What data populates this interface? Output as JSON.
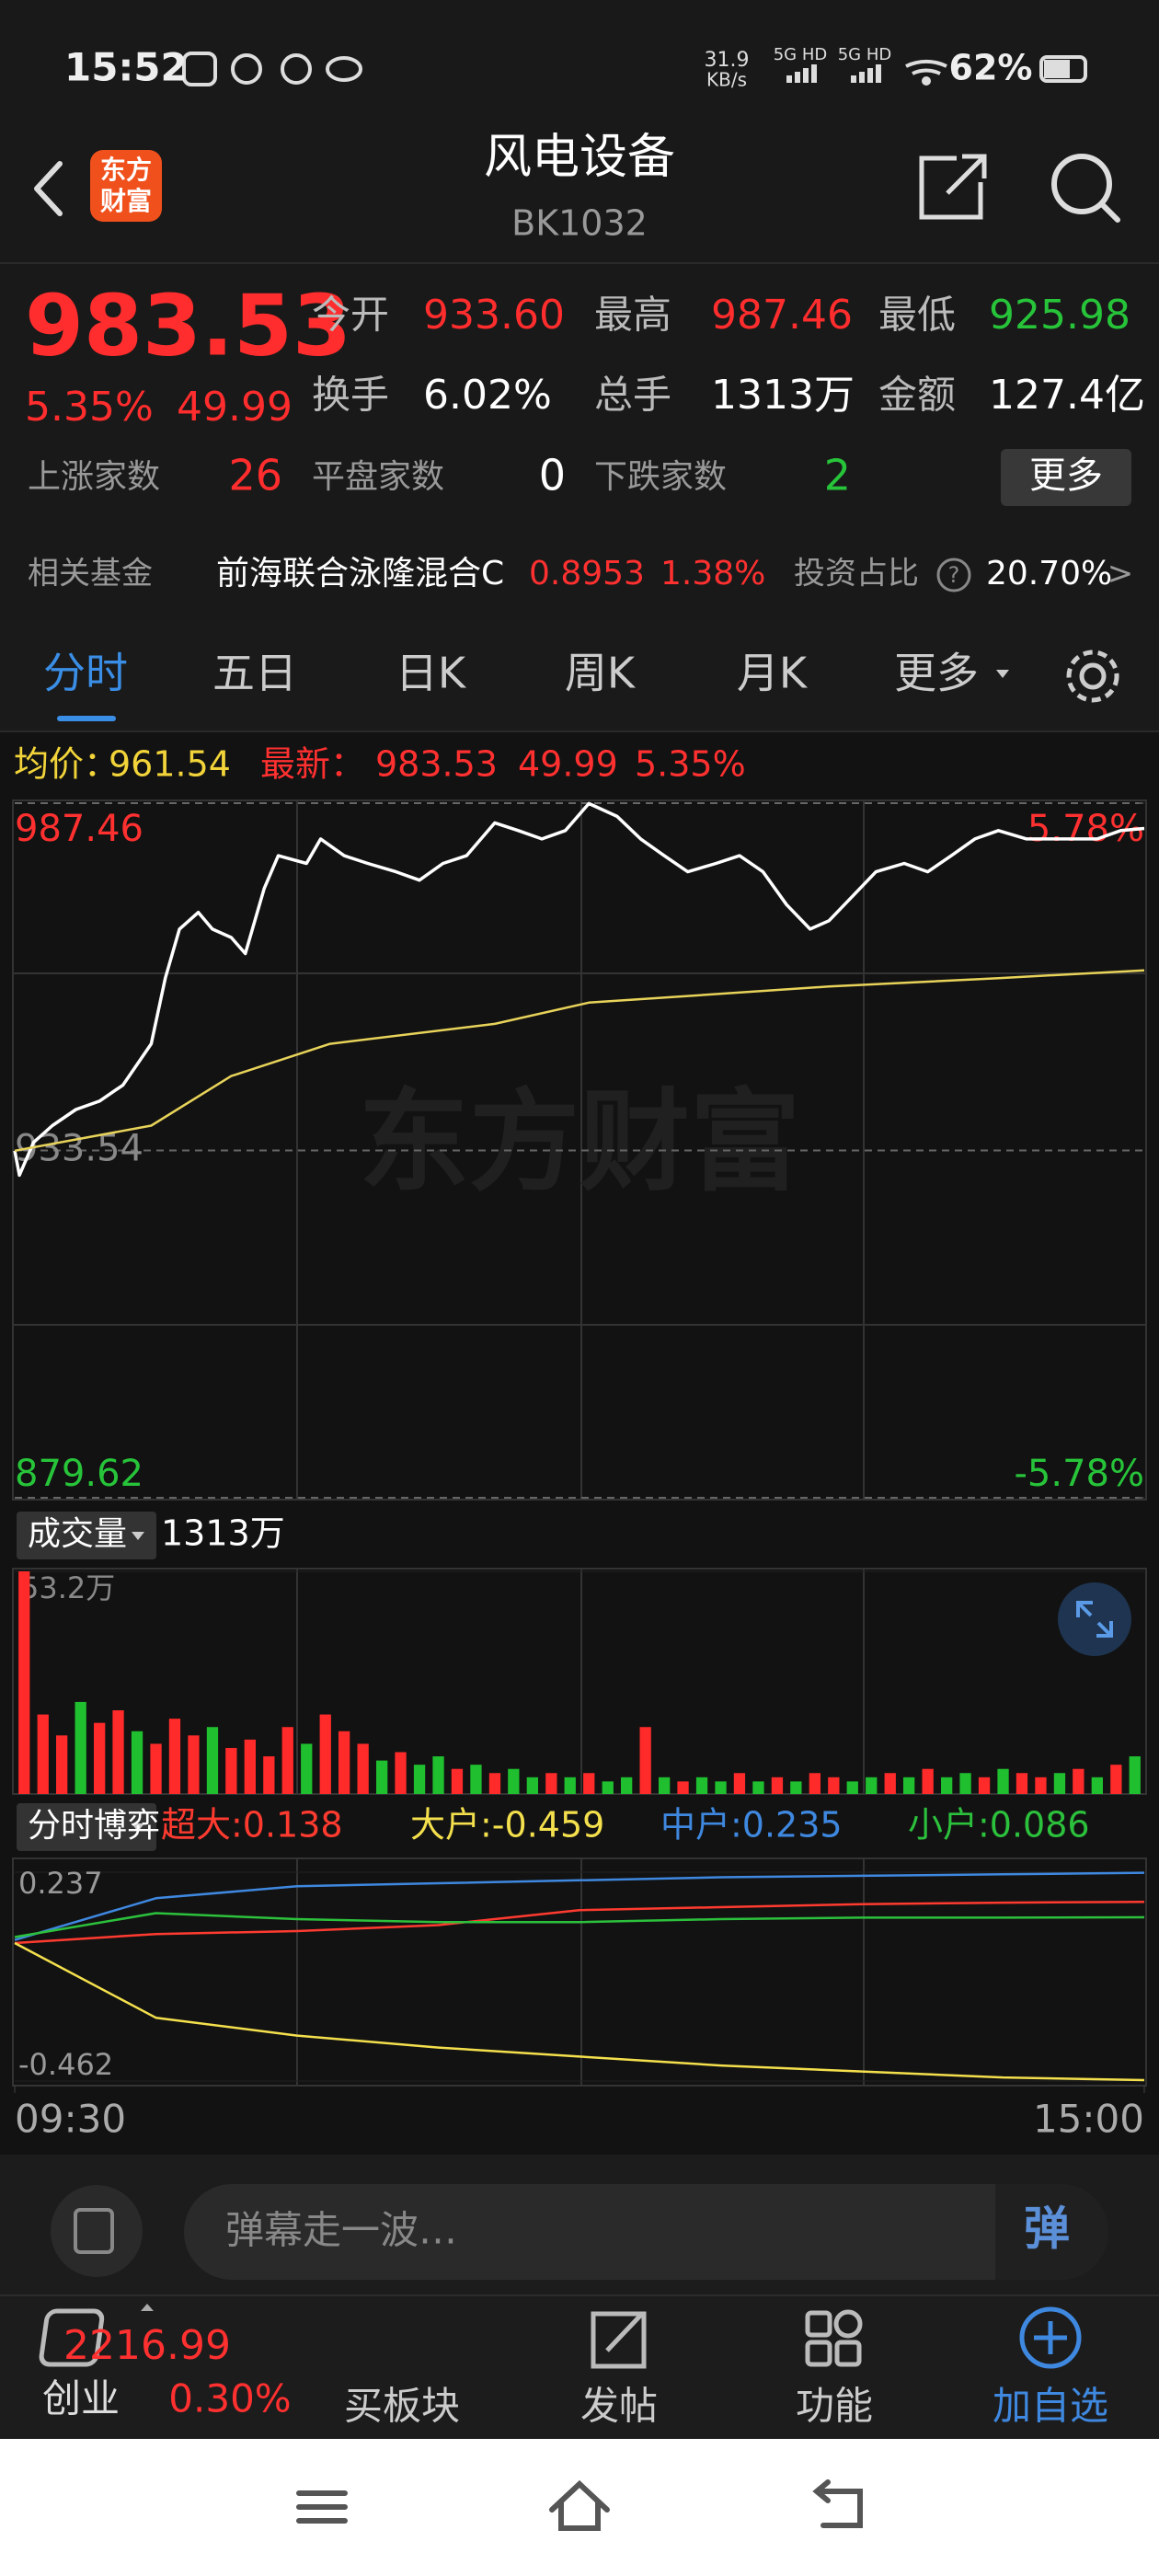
{
  "status_bar": {
    "time": "15:52",
    "speed_value": "31.9",
    "speed_unit": "KB/s",
    "network_1": "5G HD",
    "network_2": "5G HD",
    "battery": "62%"
  },
  "header": {
    "logo_lines": [
      "东方",
      "财富"
    ],
    "title": "风电设备",
    "code": "BK1032"
  },
  "quote": {
    "price": "983.53",
    "change_pct": "5.35%",
    "change": "49.99",
    "color": "#ff2d2d",
    "stats": [
      {
        "label": "今开",
        "value": "933.60",
        "color": "#ff2d2d"
      },
      {
        "label": "最高",
        "value": "987.46",
        "color": "#ff2d2d"
      },
      {
        "label": "最低",
        "value": "925.98",
        "color": "#27c43a"
      },
      {
        "label": "换手",
        "value": "6.02%",
        "color": "#ffffff"
      },
      {
        "label": "总手",
        "value": "1313万",
        "color": "#ffffff"
      },
      {
        "label": "金额",
        "value": "127.4亿",
        "color": "#ffffff"
      }
    ],
    "breadth": [
      {
        "label": "上涨家数",
        "value": "26",
        "color": "#ff2d2d"
      },
      {
        "label": "平盘家数",
        "value": "0",
        "color": "#ffffff"
      },
      {
        "label": "下跌家数",
        "value": "2",
        "color": "#27c43a"
      }
    ],
    "more_button": "更多"
  },
  "fund": {
    "label": "相关基金",
    "name": "前海联合泳隆混合C",
    "nav": "0.8953",
    "change": "1.38%",
    "ratio_label": "投资占比",
    "help": "?",
    "ratio": "20.70%",
    "arrow": ">"
  },
  "tabs": [
    "分时",
    "五日",
    "日K",
    "周K",
    "月K",
    "更多"
  ],
  "active_tab": 0,
  "chart_data": [
    {
      "type": "line",
      "info": [
        "均价：",
        "961.54",
        "最新：",
        "983.53",
        "49.99",
        "5.35%"
      ],
      "info_colors": [
        "#f2d43a",
        "#f2d43a",
        "#ff3030",
        "#ff3030",
        "#ff3030",
        "#ff3030"
      ],
      "watermark": "东方财富",
      "xlim": [
        0,
        240
      ],
      "ylim": [
        879.62,
        987.46
      ],
      "yticks": [
        879.62,
        933.54,
        987.46
      ],
      "y2lim": [
        -5.78,
        5.78
      ],
      "y2ticks": [
        {
          "value": -5.78,
          "label": "-5.78%"
        },
        {
          "value": 5.78,
          "label": "5.78%"
        }
      ],
      "series": [
        {
          "color": "#ffffff",
          "x": [
            0,
            1,
            4,
            8,
            13,
            18,
            23,
            29,
            32,
            35,
            39,
            42,
            46,
            49,
            53,
            56,
            62,
            65,
            70,
            75,
            81,
            86,
            91,
            96,
            102,
            107,
            112,
            117,
            122,
            128,
            133,
            138,
            143,
            149,
            154,
            159,
            164,
            169,
            173,
            178,
            183,
            189,
            194,
            199,
            204,
            209,
            215,
            220,
            225,
            230,
            235,
            240
          ],
          "values": [
            933.5,
            929.7,
            934.8,
            937.4,
            939.9,
            941.2,
            943.7,
            950.1,
            960.3,
            967.9,
            970.5,
            967.9,
            966.6,
            964.1,
            974.2,
            979.3,
            978.1,
            981.9,
            979.3,
            978.1,
            976.8,
            975.5,
            978.1,
            979.3,
            984.4,
            983.2,
            981.9,
            983.2,
            987.4,
            985.4,
            981.9,
            979.3,
            976.8,
            978.1,
            979.3,
            976.8,
            971.7,
            967.9,
            969.2,
            973.0,
            976.8,
            978.1,
            976.8,
            979.3,
            981.9,
            983.2,
            981.9,
            981.9,
            981.9,
            981.9,
            983.2,
            983.53
          ]
        },
        {
          "color": "#e8d35a",
          "x": [
            0,
            29,
            46,
            67,
            102,
            122,
            173,
            209,
            240
          ],
          "values": [
            933.5,
            937.4,
            945.1,
            950.1,
            953.2,
            956.5,
            959.0,
            960.3,
            961.5
          ]
        }
      ]
    },
    {
      "type": "bar",
      "title": "成交量",
      "total": "1313万",
      "ylim": [
        0,
        53.2
      ],
      "yticks": [
        {
          "value": 53.2,
          "label": "53.2万"
        }
      ],
      "up_color": "#ff2a2a",
      "down_color": "#1fbf2f",
      "values": [
        53.2,
        19,
        14,
        22,
        17,
        20,
        15,
        12,
        18,
        14,
        16,
        11,
        13,
        9,
        16,
        12,
        19,
        15,
        12,
        8,
        10,
        7,
        9,
        6,
        7,
        5,
        6,
        4,
        5,
        4,
        5,
        3,
        4,
        16,
        4,
        3,
        4,
        3,
        5,
        3,
        4,
        3,
        5,
        4,
        3,
        4,
        5,
        4,
        6,
        4,
        5,
        4,
        6,
        5,
        4,
        5,
        6,
        4,
        7,
        9
      ],
      "up": [
        1,
        1,
        1,
        0,
        1,
        1,
        0,
        1,
        1,
        1,
        0,
        1,
        1,
        1,
        1,
        0,
        1,
        1,
        1,
        0,
        1,
        0,
        0,
        1,
        0,
        1,
        0,
        0,
        1,
        0,
        1,
        0,
        0,
        1,
        0,
        1,
        0,
        0,
        1,
        0,
        1,
        0,
        1,
        1,
        0,
        0,
        1,
        0,
        1,
        0,
        0,
        1,
        0,
        1,
        1,
        0,
        1,
        0,
        1,
        0
      ]
    },
    {
      "type": "line",
      "title": "分时博弈",
      "xlim": [
        0,
        240
      ],
      "xticks": [
        {
          "value": 0,
          "label": "09:30"
        },
        {
          "value": 240,
          "label": "15:00"
        }
      ],
      "ylim": [
        -0.462,
        0.237
      ],
      "yticks": [
        -0.462,
        0.237
      ],
      "x": [
        0,
        30,
        60,
        90,
        120,
        150,
        180,
        210,
        240
      ],
      "series": [
        {
          "name": "超大:0.138",
          "color": "#ff3b30",
          "values": [
            0.0,
            0.03,
            0.04,
            0.06,
            0.11,
            0.12,
            0.13,
            0.135,
            0.138
          ]
        },
        {
          "name": "大户:-0.459",
          "color": "#f4e04d",
          "values": [
            0.0,
            -0.25,
            -0.31,
            -0.35,
            -0.38,
            -0.41,
            -0.43,
            -0.45,
            -0.459
          ]
        },
        {
          "name": "中户:0.235",
          "color": "#3f88e0",
          "values": [
            0.01,
            0.15,
            0.19,
            0.2,
            0.21,
            0.22,
            0.225,
            0.23,
            0.235
          ]
        },
        {
          "name": "小户:0.086",
          "color": "#2cc13c",
          "values": [
            0.02,
            0.1,
            0.08,
            0.07,
            0.07,
            0.08,
            0.085,
            0.085,
            0.086
          ]
        }
      ]
    }
  ],
  "comment_bar": {
    "placeholder": "弹幕走一波…",
    "button": "弹"
  },
  "bottom_nav": {
    "index": {
      "value": "2216.99",
      "name": "创业",
      "change": "0.30%"
    },
    "items": [
      "买板块",
      "发帖",
      "功能",
      "加自选"
    ]
  }
}
